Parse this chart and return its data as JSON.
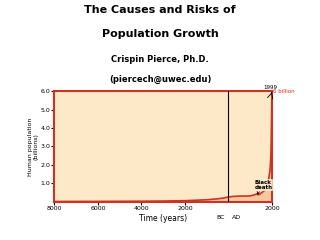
{
  "title_line1": "The Causes and Risks of",
  "title_line2": "Population Growth",
  "subtitle_line1": "Crispin Pierce, Ph.D.",
  "subtitle_line2": "(piercech@uwec.edu)",
  "xlabel": "Time (years)",
  "ylabel": "Human population\n(billions)",
  "ylim": [
    0,
    6.0
  ],
  "yticks": [
    1.0,
    2.0,
    3.0,
    4.0,
    5.0,
    6.0
  ],
  "ytick_labels": [
    "1.0",
    "2.0",
    "3.0",
    "4.0",
    "5.0",
    "6.0"
  ],
  "xtick_positions": [
    -8000,
    -6000,
    -4000,
    -2000,
    2000
  ],
  "xtick_labels": [
    "8000",
    "6000",
    "4000",
    "2000",
    "2000"
  ],
  "fill_color": "#F5C9A0",
  "line_color": "#CC3322",
  "annotation_1999_text": "1999",
  "annotation_6billion_text": "6 billion",
  "annotation_black_death": "Black\ndeath",
  "background_color": "#ffffff",
  "ax_background": "#FDE8C8",
  "x_data": [
    -8000,
    -7000,
    -6000,
    -5000,
    -4000,
    -3000,
    -2000,
    -1000,
    -500,
    -200,
    0,
    200,
    500,
    800,
    1000,
    1200,
    1340,
    1350,
    1400,
    1500,
    1600,
    1650,
    1700,
    1750,
    1800,
    1850,
    1900,
    1920,
    1940,
    1950,
    1960,
    1970,
    1980,
    1990,
    1999,
    2000
  ],
  "y_data": [
    0.005,
    0.007,
    0.01,
    0.015,
    0.02,
    0.03,
    0.05,
    0.1,
    0.15,
    0.2,
    0.25,
    0.28,
    0.3,
    0.3,
    0.31,
    0.37,
    0.44,
    0.37,
    0.38,
    0.46,
    0.55,
    0.6,
    0.68,
    0.79,
    0.98,
    1.26,
    1.65,
    1.86,
    2.3,
    2.55,
    3.02,
    3.7,
    4.43,
    5.27,
    6.0,
    6.0
  ]
}
